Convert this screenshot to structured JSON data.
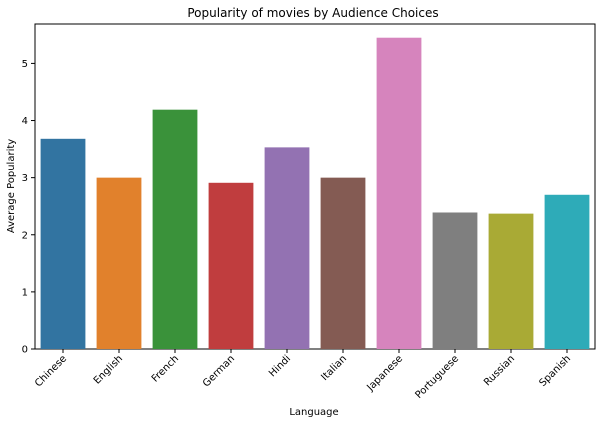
{
  "chart_data": {
    "type": "bar",
    "title": "Popularity of movies by Audience Choices",
    "xlabel": "Language",
    "ylabel": "Average Popularity",
    "categories": [
      "Chinese",
      "English",
      "French",
      "German",
      "Hindi",
      "Italian",
      "Japanese",
      "Portuguese",
      "Russian",
      "Spanish"
    ],
    "values": [
      3.68,
      3.0,
      4.19,
      2.91,
      3.53,
      3.0,
      5.45,
      2.39,
      2.37,
      2.7
    ],
    "colors": [
      "#3274a1",
      "#e1812c",
      "#3a923a",
      "#c03d3e",
      "#9372b2",
      "#845b53",
      "#d684bd",
      "#7f7f7f",
      "#a9aa35",
      "#2eabb8"
    ],
    "ylim": [
      0,
      5.69
    ],
    "yticks": [
      0,
      1,
      2,
      3,
      4,
      5
    ],
    "grid": false,
    "legend": "none"
  }
}
